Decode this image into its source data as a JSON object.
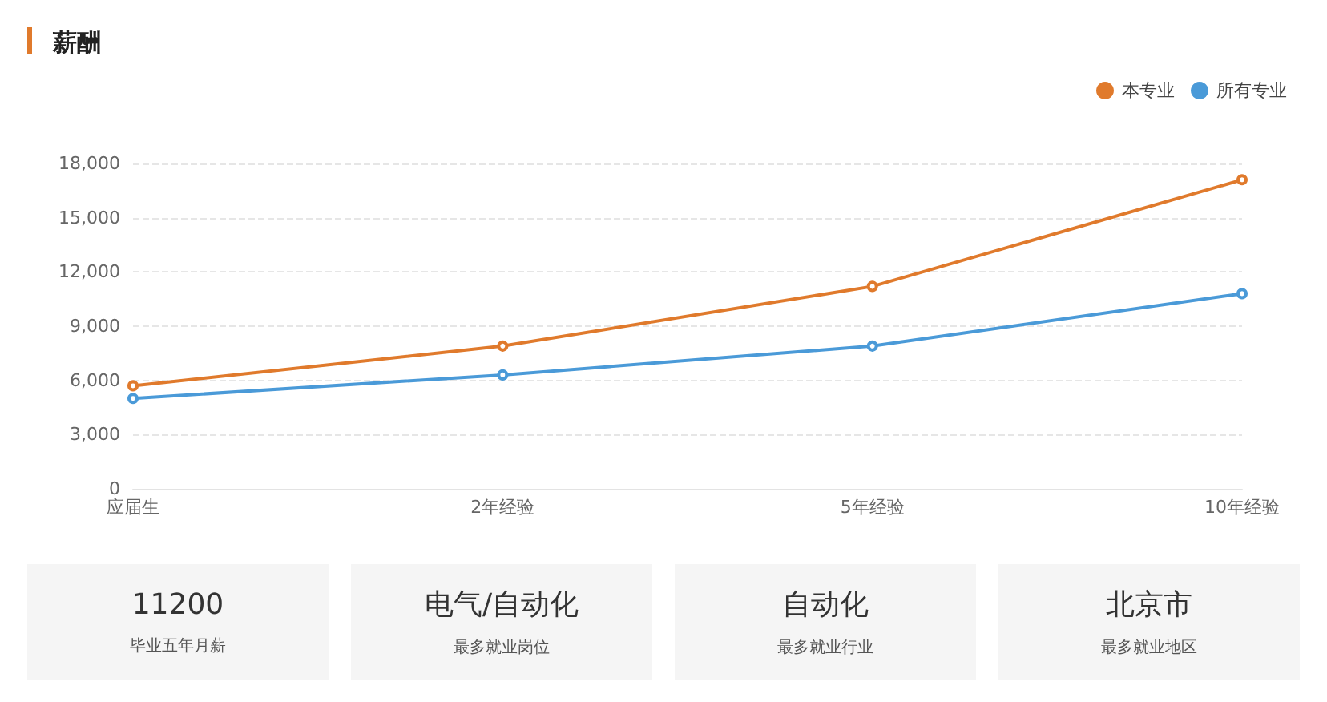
{
  "chart_data": [
    {
      "type": "line",
      "title": "薪酬",
      "categories": [
        "应届生",
        "2年经验",
        "5年经验",
        "10年经验"
      ],
      "series": [
        {
          "name": "本专业",
          "color": "#e07a2c",
          "values": [
            5700,
            7900,
            11200,
            17100
          ]
        },
        {
          "name": "所有专业",
          "color": "#4a9ad8",
          "values": [
            5000,
            6300,
            7900,
            10800
          ]
        }
      ],
      "ylim": [
        0,
        18000
      ],
      "yticks": [
        0,
        {
          "value": 3000,
          "label": "3,000"
        },
        {
          "value": 6000,
          "label": "6,000"
        },
        {
          "value": 9000,
          "label": "9,000"
        },
        {
          "value": 12000,
          "label": "12,000"
        },
        {
          "value": 15000,
          "label": "15,000"
        },
        {
          "value": 18000,
          "label": "18,000"
        }
      ],
      "grid": "y",
      "legend": "top right",
      "marker": "circle",
      "line_style": "solid"
    },
    {
      "type": "other",
      "annotations": [
        "11200",
        "毕业五年月薪",
        "电气/自动化",
        "最多就业岗位",
        "自动化",
        "最多就业行业",
        "北京市",
        "最多就业地区"
      ]
    }
  ]
}
